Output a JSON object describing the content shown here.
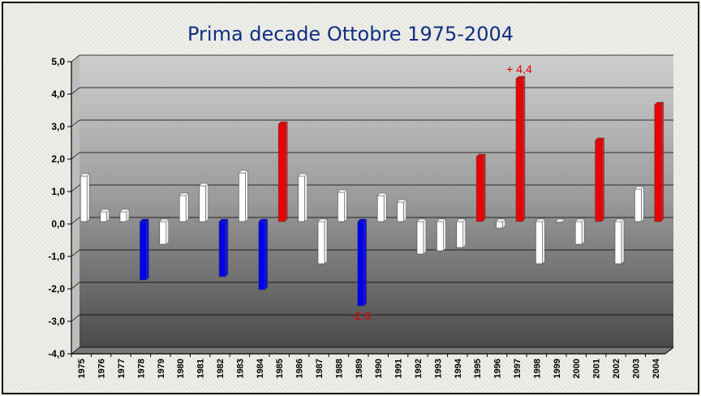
{
  "chart_data": {
    "type": "bar",
    "title": "Prima decade Ottobre 1975-2004",
    "categories": [
      "1975",
      "1976",
      "1977",
      "1978",
      "1979",
      "1980",
      "1981",
      "1982",
      "1983",
      "1984",
      "1985",
      "1986",
      "1987",
      "1988",
      "1989",
      "1990",
      "1991",
      "1992",
      "1993",
      "1994",
      "1995",
      "1996",
      "1997",
      "1998",
      "1999",
      "2000",
      "2001",
      "2002",
      "2003",
      "2004"
    ],
    "values": [
      1.4,
      0.3,
      0.3,
      -1.8,
      -0.7,
      0.8,
      1.1,
      -1.7,
      1.5,
      -2.1,
      3.0,
      1.4,
      -1.3,
      0.9,
      -2.6,
      0.8,
      0.6,
      -1.0,
      -0.9,
      -0.8,
      2.0,
      -0.2,
      4.4,
      -1.3,
      0.0,
      -0.7,
      2.5,
      -1.3,
      1.0,
      3.6
    ],
    "bar_colors": [
      "white",
      "white",
      "white",
      "blue",
      "white",
      "white",
      "white",
      "blue",
      "white",
      "blue",
      "red",
      "white",
      "white",
      "white",
      "blue",
      "white",
      "white",
      "white",
      "white",
      "white",
      "red",
      "white",
      "red",
      "white",
      "white",
      "white",
      "red",
      "white",
      "white",
      "red"
    ],
    "colors": {
      "white": "#ffffff",
      "blue": "#0000ee",
      "red": "#ee0000"
    },
    "ylim": [
      -4.0,
      5.0
    ],
    "yticks": [
      "5,0",
      "4,0",
      "3,0",
      "2,0",
      "1,0",
      "0,0",
      "-1,0",
      "-2,0",
      "-3,0",
      "-4,0"
    ],
    "grid": true,
    "annotations": [
      {
        "category": "1997",
        "text": "+ 4,4"
      },
      {
        "category": "1989",
        "text": "-2,6"
      }
    ],
    "xlabel": "",
    "ylabel": ""
  }
}
